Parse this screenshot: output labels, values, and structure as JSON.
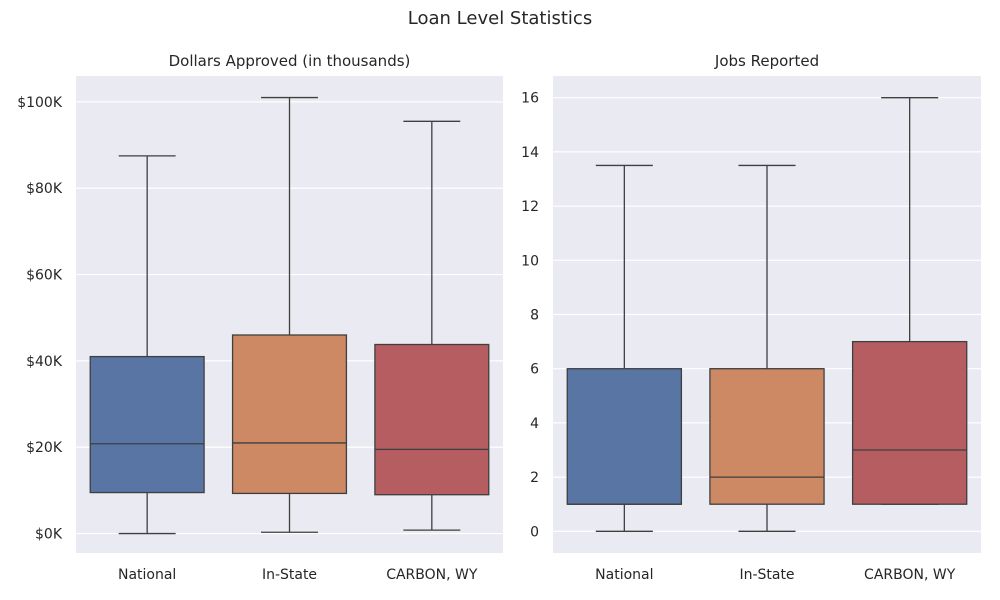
{
  "title": "Loan Level Statistics",
  "chart_data": [
    {
      "type": "box",
      "title": "Dollars Approved (in thousands)",
      "categories": [
        "National",
        "In-State",
        "CARBON, WY"
      ],
      "ytick_values": [
        0,
        20,
        40,
        60,
        80,
        100
      ],
      "ytick_labels": [
        "$0K",
        "$20K",
        "$40K",
        "$60K",
        "$80K",
        "$100K"
      ],
      "ylim": [
        -4.5,
        106
      ],
      "grid": true,
      "colors": [
        "#5875a4",
        "#cc8963",
        "#b55d60"
      ],
      "boxes": [
        {
          "category": "National",
          "whisker_low": 0,
          "q1": 9.5,
          "median": 20.8,
          "q3": 41,
          "whisker_high": 87.5
        },
        {
          "category": "In-State",
          "whisker_low": 0.3,
          "q1": 9.3,
          "median": 21,
          "q3": 46,
          "whisker_high": 101
        },
        {
          "category": "CARBON, WY",
          "whisker_low": 0.8,
          "q1": 9,
          "median": 19.5,
          "q3": 43.8,
          "whisker_high": 95.5
        }
      ]
    },
    {
      "type": "box",
      "title": "Jobs Reported",
      "categories": [
        "National",
        "In-State",
        "CARBON, WY"
      ],
      "ytick_values": [
        0,
        2,
        4,
        6,
        8,
        10,
        12,
        14,
        16
      ],
      "ytick_labels": [
        "0",
        "2",
        "4",
        "6",
        "8",
        "10",
        "12",
        "14",
        "16"
      ],
      "ylim": [
        -0.8,
        16.8
      ],
      "grid": true,
      "colors": [
        "#5875a4",
        "#cc8963",
        "#b55d60"
      ],
      "boxes": [
        {
          "category": "National",
          "whisker_low": 0,
          "q1": 1,
          "median": 1,
          "q3": 6,
          "whisker_high": 13.5
        },
        {
          "category": "In-State",
          "whisker_low": 0,
          "q1": 1,
          "median": 2,
          "q3": 6,
          "whisker_high": 13.5
        },
        {
          "category": "CARBON, WY",
          "whisker_low": 1,
          "q1": 1,
          "median": 3,
          "q3": 7,
          "whisker_high": 16
        }
      ]
    }
  ]
}
